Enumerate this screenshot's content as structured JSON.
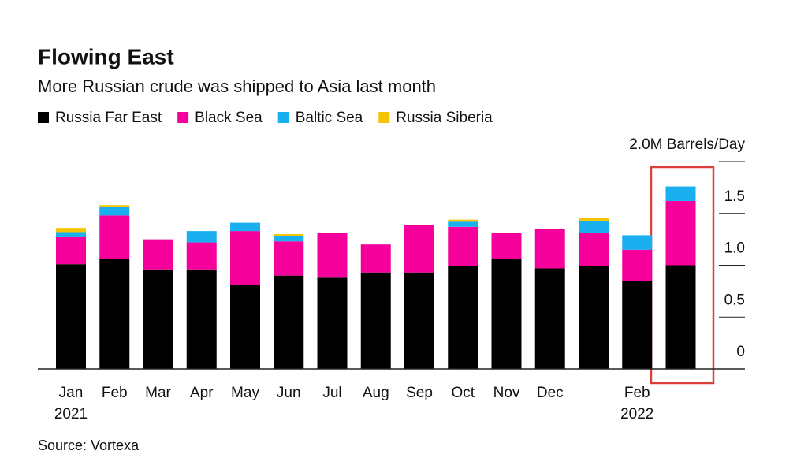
{
  "chart_data": {
    "type": "stacked_bar",
    "title": "Flowing East",
    "subtitle": "More Russian crude was shipped to Asia last month",
    "source": "Source: Vortexa",
    "categories": [
      "Jan 2021",
      "Feb",
      "Mar",
      "Apr",
      "May",
      "Jun",
      "Jul",
      "Aug",
      "Sep",
      "Oct",
      "Nov",
      "Dec",
      null,
      "Feb 2022",
      null
    ],
    "series": [
      {
        "name": "Russia Far East",
        "color": "#000000",
        "values": [
          1.01,
          1.06,
          0.96,
          0.96,
          0.81,
          0.9,
          0.88,
          0.93,
          0.93,
          0.99,
          1.06,
          0.97,
          0.99,
          0.85,
          1.0
        ]
      },
      {
        "name": "Black Sea",
        "color": "#f5009b",
        "values": [
          0.26,
          0.42,
          0.29,
          0.26,
          0.52,
          0.33,
          0.43,
          0.27,
          0.46,
          0.38,
          0.25,
          0.38,
          0.32,
          0.3,
          0.62
        ]
      },
      {
        "name": "Baltic Sea",
        "color": "#1ab0f0",
        "values": [
          0.05,
          0.08,
          0,
          0.11,
          0.08,
          0.05,
          0,
          0,
          0,
          0.05,
          0,
          0,
          0.12,
          0.14,
          0.14
        ]
      },
      {
        "name": "Russia Siberia",
        "color": "#f5c400",
        "values": [
          0.04,
          0.02,
          0,
          0,
          0,
          0.02,
          0,
          0,
          0,
          0.02,
          0,
          0,
          0.03,
          0,
          0
        ]
      }
    ],
    "ylim": [
      0,
      2.0
    ],
    "yticks": [
      0,
      0.5,
      {
        "value": 1,
        "label": "1.0"
      },
      1.5,
      {
        "value": 2,
        "label": "2.0M Barrels/Day"
      }
    ],
    "grid": true
  }
}
